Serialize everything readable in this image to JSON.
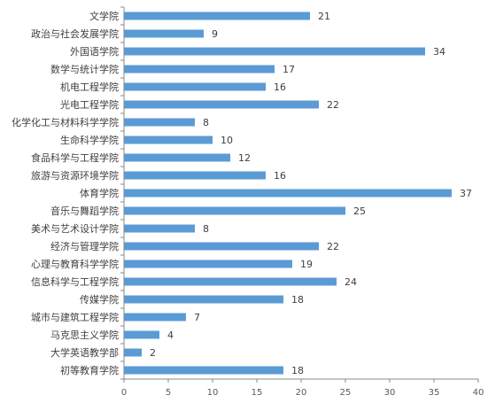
{
  "chart_data": {
    "type": "bar",
    "orientation": "horizontal",
    "categories": [
      "文学院",
      "政治与社会发展学院",
      "外国语学院",
      "数学与统计学院",
      "机电工程学院",
      "光电工程学院",
      "化学化工与材料科学学院",
      "生命科学学院",
      "食品科学与工程学院",
      "旅游与资源环境学院",
      "体育学院",
      "音乐与舞蹈学院",
      "美术与艺术设计学院",
      "经济与管理学院",
      "心理与教育科学学院",
      "信息科学与工程学院",
      "传媒学院",
      "城市与建筑工程学院",
      "马克思主义学院",
      "大学英语教学部",
      "初等教育学院"
    ],
    "values": [
      21,
      9,
      34,
      17,
      16,
      22,
      8,
      10,
      12,
      16,
      37,
      25,
      8,
      22,
      19,
      24,
      18,
      7,
      4,
      2,
      18
    ],
    "xlim": [
      0,
      40
    ],
    "xticks": [
      0,
      5,
      10,
      15,
      20,
      25,
      30,
      35,
      40
    ],
    "title": "",
    "xlabel": "",
    "ylabel": "",
    "grid": false,
    "legend": "none",
    "bar_color": "#5b9bd5",
    "data_labels": true
  }
}
